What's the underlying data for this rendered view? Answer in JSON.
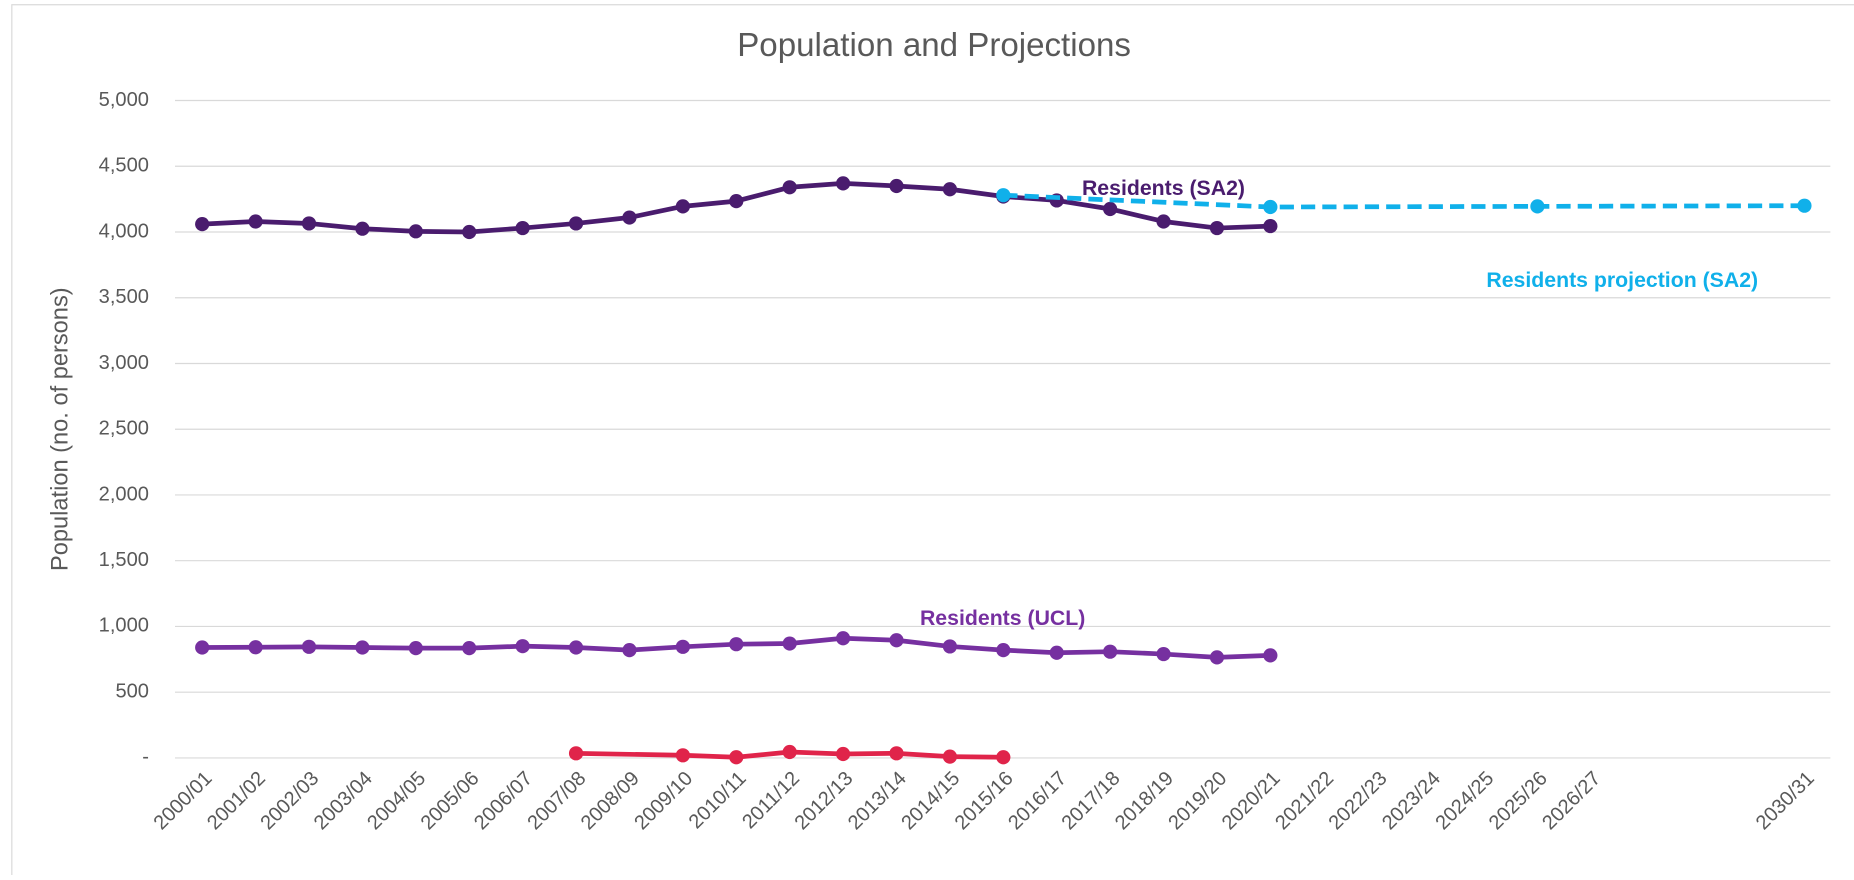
{
  "chart_data": {
    "type": "line",
    "title": "Population and Projections",
    "y_label": "Population (no. of persons)",
    "categories": [
      "2000/01",
      "2001/02",
      "2002/03",
      "2003/04",
      "2004/05",
      "2005/06",
      "2006/07",
      "2007/08",
      "2008/09",
      "2009/10",
      "2010/11",
      "2011/12",
      "2012/13",
      "2013/14",
      "2014/15",
      "2015/16",
      "2016/17",
      "2017/18",
      "2018/19",
      "2019/20",
      "2020/21",
      "2021/22",
      "2022/23",
      "2023/24",
      "2024/25",
      "2025/26",
      "2026/27",
      null,
      null,
      null,
      "2030/31"
    ],
    "ylim": [
      0,
      5000
    ],
    "yticks": [
      {
        "value": 0,
        "label": "-"
      },
      500,
      {
        "value": 1000,
        "label": "1,000"
      },
      {
        "value": 1500,
        "label": "1,500"
      },
      {
        "value": 2000,
        "label": "2,000"
      },
      {
        "value": 2500,
        "label": "2,500"
      },
      {
        "value": 3000,
        "label": "3,000"
      },
      {
        "value": 3500,
        "label": "3,500"
      },
      {
        "value": 4000,
        "label": "4,000"
      },
      {
        "value": 4500,
        "label": "4,500"
      },
      {
        "value": 5000,
        "label": "5,000"
      }
    ],
    "grid": true,
    "series": [
      {
        "name": "Residents (SA2)",
        "color": "#4a1c6e",
        "x": [
          "2000/01",
          "2001/02",
          "2002/03",
          "2003/04",
          "2004/05",
          "2005/06",
          "2006/07",
          "2007/08",
          "2008/09",
          "2009/10",
          "2010/11",
          "2011/12",
          "2012/13",
          "2013/14",
          "2014/15",
          "2015/16",
          "2016/17",
          "2017/18",
          "2018/19",
          "2019/20",
          "2020/21"
        ],
        "values": [
          4060,
          4080,
          4065,
          4025,
          4005,
          4000,
          4030,
          4065,
          4110,
          4195,
          4235,
          4340,
          4370,
          4350,
          4325,
          4270,
          4240,
          4175,
          4080,
          4030,
          4045
        ]
      },
      {
        "name": "Residents (UCL)",
        "color": "#7630a0",
        "x": [
          "2000/01",
          "2001/02",
          "2002/03",
          "2003/04",
          "2004/05",
          "2005/06",
          "2006/07",
          "2007/08",
          "2008/09",
          "2009/10",
          "2010/11",
          "2011/12",
          "2012/13",
          "2013/14",
          "2014/15",
          "2015/16",
          "2016/17",
          "2017/18",
          "2018/19",
          "2019/20",
          "2020/21"
        ],
        "values": [
          840,
          842,
          845,
          840,
          835,
          835,
          850,
          840,
          820,
          845,
          865,
          870,
          910,
          895,
          848,
          820,
          800,
          808,
          790,
          765,
          780
        ]
      },
      {
        "color": "#e0244a",
        "x": [
          "2007/08",
          "2009/10",
          "2010/11",
          "2011/12",
          "2012/13",
          "2013/14",
          "2014/15",
          "2015/16"
        ],
        "values": [
          35,
          20,
          5,
          45,
          30,
          35,
          10,
          5
        ]
      },
      {
        "name": "Residents projection (SA2)",
        "color": "#10b0ea",
        "dashed": true,
        "x": [
          "2015/16",
          "2020/21",
          "2025/26",
          "2030/31"
        ],
        "values": [
          4280,
          4190,
          4195,
          4200
        ]
      }
    ]
  }
}
